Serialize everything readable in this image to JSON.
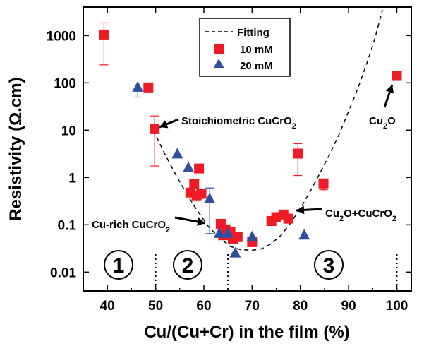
{
  "chart_data": {
    "type": "scatter",
    "xlabel": "Cu/(Cu+Cr) in the film (%)",
    "ylabel_main": "Resistivity (",
    "ylabel_omega": "Ω",
    "ylabel_tail": ".cm)",
    "xlim": [
      35,
      103
    ],
    "ylim": [
      0.004,
      4000
    ],
    "y_scale": "log",
    "x_ticks": [
      40,
      50,
      60,
      70,
      80,
      90,
      100
    ],
    "y_ticks": [
      {
        "value": 0.01,
        "label": "0.01"
      },
      {
        "value": 0.1,
        "label": "0.1"
      },
      {
        "value": 1,
        "label": "1"
      },
      {
        "value": 10,
        "label": "10"
      },
      {
        "value": 100,
        "label": "100"
      },
      {
        "value": 1000,
        "label": "1000"
      }
    ],
    "legend_position": "top-center",
    "series": [
      {
        "name": "Fitting",
        "kind": "dashed-line",
        "color": "#000000",
        "points": [
          [
            49.5,
            10
          ],
          [
            52,
            3
          ],
          [
            55,
            0.8
          ],
          [
            58,
            0.25
          ],
          [
            61,
            0.09
          ],
          [
            63.5,
            0.05
          ],
          [
            65.5,
            0.035
          ],
          [
            67.5,
            0.03
          ],
          [
            70,
            0.029
          ],
          [
            72,
            0.031
          ],
          [
            74,
            0.04
          ],
          [
            76,
            0.06
          ],
          [
            78,
            0.11
          ],
          [
            80,
            0.22
          ],
          [
            82,
            0.5
          ],
          [
            84,
            1.2
          ],
          [
            86,
            3
          ],
          [
            88,
            8
          ],
          [
            90,
            25
          ],
          [
            92,
            80
          ],
          [
            94,
            300
          ],
          [
            95.5,
            900
          ],
          [
            96.5,
            2200
          ],
          [
            97,
            3500
          ]
        ]
      },
      {
        "name": "10 mM",
        "kind": "square",
        "color": "#ee1b24",
        "points": [
          {
            "x": 39.3,
            "y": 1050,
            "lo": 240,
            "hi": 1850
          },
          {
            "x": 48.5,
            "y": 80
          },
          {
            "x": 49.8,
            "y": 10.5,
            "lo": 1.75,
            "hi": 20
          },
          {
            "x": 57.2,
            "y": 0.48
          },
          {
            "x": 58,
            "y": 0.72
          },
          {
            "x": 58.5,
            "y": 0.42,
            "lo": 0.32
          },
          {
            "x": 59,
            "y": 1.55
          },
          {
            "x": 59.5,
            "y": 0.45
          },
          {
            "x": 63.5,
            "y": 0.105
          },
          {
            "x": 64,
            "y": 0.06
          },
          {
            "x": 64.5,
            "y": 0.08
          },
          {
            "x": 65.5,
            "y": 0.07
          },
          {
            "x": 66,
            "y": 0.05
          },
          {
            "x": 67,
            "y": 0.055
          },
          {
            "x": 70,
            "y": 0.043
          },
          {
            "x": 74,
            "y": 0.12
          },
          {
            "x": 75,
            "y": 0.145
          },
          {
            "x": 76.5,
            "y": 0.165
          },
          {
            "x": 77.5,
            "y": 0.135
          },
          {
            "x": 79.5,
            "y": 3.2,
            "lo": 1.1,
            "hi": 5.2
          },
          {
            "x": 84.8,
            "y": 0.75,
            "lo": 0.55
          },
          {
            "x": 100,
            "y": 140
          }
        ]
      },
      {
        "name": "20 mM",
        "kind": "triangle",
        "color": "#2e4fa0",
        "points": [
          {
            "x": 46.3,
            "y": 80,
            "lo": 50
          },
          {
            "x": 54.5,
            "y": 3.1
          },
          {
            "x": 56.8,
            "y": 1.6
          },
          {
            "x": 61.2,
            "y": 0.35,
            "lo": 0.065,
            "hi": 0.6
          },
          {
            "x": 63.2,
            "y": 0.065
          },
          {
            "x": 65,
            "y": 0.065
          },
          {
            "x": 66.5,
            "y": 0.025
          },
          {
            "x": 70,
            "y": 0.055
          },
          {
            "x": 80.8,
            "y": 0.06
          }
        ]
      }
    ],
    "annotations": [
      {
        "text": "Stoichiometric CuCrO",
        "sub": "2"
      },
      {
        "text": "Cu-rich CuCrO",
        "sub": "2"
      },
      {
        "text": "Cu",
        "sub": "2",
        "text2": "O+CuCrO",
        "sub2": "2"
      },
      {
        "text": "Cu",
        "sub": "2",
        "text2": "O"
      }
    ],
    "regions": [
      "1",
      "2",
      "3"
    ]
  }
}
